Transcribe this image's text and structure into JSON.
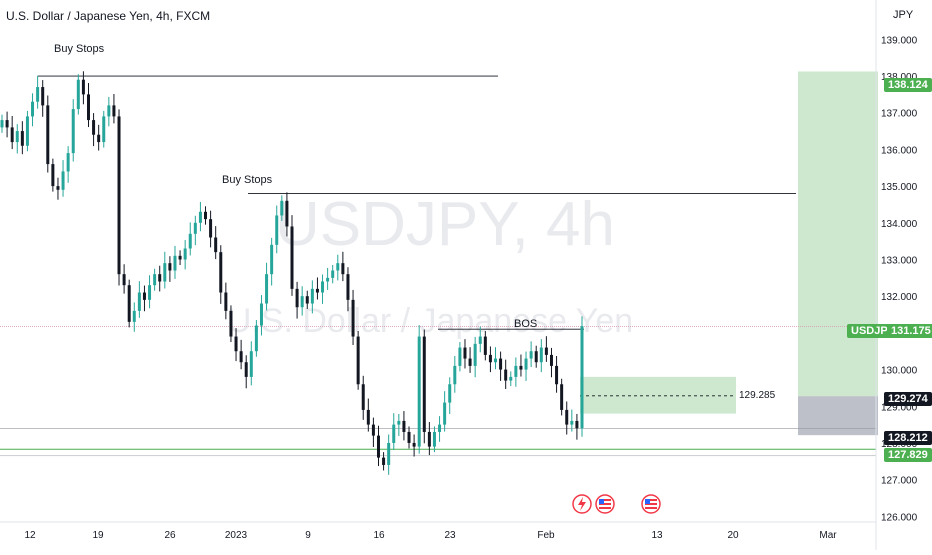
{
  "header": {
    "title": "U.S. Dollar / Japanese Yen, 4h, FXCM",
    "currency": "JPY"
  },
  "watermark": {
    "symbol": "USDJPY, 4h",
    "name": "U.S. Dollar / Japanese Yen"
  },
  "annotations": {
    "buy_stops_1": "Buy Stops",
    "buy_stops_2": "Buy Stops",
    "bos": "BOS",
    "zone_mid_label": "129.285"
  },
  "price_badges": {
    "symbol_tag": "USDJPY",
    "current": "131.175",
    "target": "138.124",
    "entry": "129.274",
    "stop": "128.212",
    "support": "127.829"
  },
  "colors": {
    "up": "#26a69a",
    "down": "#131722",
    "green_badge": "#4caf50",
    "black_badge": "#131722",
    "target_zone": "#c8e6c9",
    "stop_zone": "#b2b5be",
    "support_line": "#4caf50"
  },
  "icons": [
    "lightning-icon",
    "us-flag-icon",
    "us-flag-icon"
  ],
  "chart_data": {
    "type": "candlestick",
    "y_axis": {
      "ticks": [
        "139.000",
        "138.000",
        "137.000",
        "136.000",
        "135.000",
        "134.000",
        "133.000",
        "132.000",
        "131.000",
        "130.000",
        "129.000",
        "128.000",
        "127.000",
        "126.000"
      ],
      "tick_values": [
        139,
        138,
        137,
        136,
        135,
        134,
        133,
        132,
        131,
        130,
        129,
        128,
        127,
        126
      ],
      "range": [
        125.9,
        139.8
      ]
    },
    "x_axis": {
      "ticks": [
        "12",
        "19",
        "26",
        "2023",
        "9",
        "16",
        "23",
        "Feb",
        "13",
        "20",
        "Mar"
      ]
    },
    "series_close": [
      136.8,
      136.6,
      136.2,
      136.5,
      136.1,
      136.9,
      137.3,
      137.7,
      137.2,
      135.6,
      135.0,
      134.9,
      135.4,
      135.9,
      137.1,
      137.9,
      137.5,
      136.8,
      136.4,
      136.2,
      136.9,
      137.2,
      136.9,
      132.6,
      132.3,
      131.3,
      131.6,
      132.1,
      131.9,
      132.3,
      132.6,
      132.4,
      132.9,
      132.7,
      133.1,
      133.0,
      133.3,
      133.7,
      134.0,
      134.3,
      134.1,
      133.6,
      133.2,
      132.1,
      131.6,
      130.9,
      130.5,
      130.2,
      129.8,
      130.5,
      131.2,
      131.8,
      132.6,
      133.4,
      134.2,
      134.6,
      133.9,
      132.2,
      131.7,
      132.0,
      131.8,
      132.2,
      132.1,
      132.4,
      132.5,
      132.7,
      132.9,
      132.6,
      131.9,
      130.9,
      129.6,
      128.9,
      128.5,
      128.2,
      127.6,
      127.4,
      128.0,
      128.5,
      128.6,
      128.3,
      128.0,
      127.9,
      130.9,
      128.3,
      127.9,
      128.3,
      128.5,
      129.1,
      129.6,
      130.1,
      130.6,
      130.3,
      130.1,
      130.7,
      130.9,
      130.4,
      130.2,
      130.3,
      130.0,
      129.7,
      129.8,
      130.1,
      130.0,
      130.3,
      130.5,
      130.2,
      130.6,
      130.4,
      130.1,
      129.6,
      128.9,
      128.5,
      128.6,
      128.4,
      131.18
    ],
    "levels": {
      "buy_stops_1": 138.0,
      "buy_stops_2": 134.8,
      "bos": 131.1,
      "target": 138.124,
      "entry": 129.274,
      "stop": 128.212,
      "support": 127.829,
      "current": 131.175,
      "gray_ref": 128.4
    },
    "zones": [
      {
        "kind": "demand",
        "from": 128.8,
        "to": 129.8,
        "mid": 129.285
      },
      {
        "kind": "target",
        "from": 129.274,
        "to": 138.124
      },
      {
        "kind": "stop",
        "from": 128.212,
        "to": 129.274
      }
    ]
  }
}
